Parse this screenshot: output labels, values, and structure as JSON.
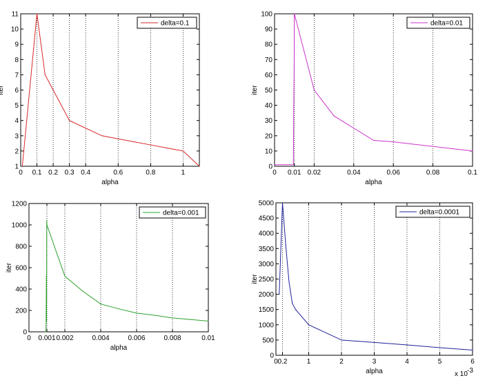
{
  "chart_data": [
    {
      "type": "line",
      "xlabel": "alpha",
      "ylabel": "iter",
      "xlim": [
        0,
        1.1
      ],
      "ylim": [
        1,
        11
      ],
      "xticks": [
        0,
        0.1,
        0.2,
        0.3,
        0.4,
        0.6,
        0.8,
        1
      ],
      "xtick_labels": [
        "0",
        "0.1",
        "0.2",
        "0.3",
        "0.4",
        "0.6",
        "0.8",
        "1"
      ],
      "yticks": [
        1,
        2,
        3,
        4,
        5,
        6,
        7,
        8,
        9,
        10,
        11
      ],
      "ytick_labels": [
        "1",
        "2",
        "3",
        "4",
        "5",
        "6",
        "7",
        "8",
        "9",
        "10",
        "11"
      ],
      "grid_x": true,
      "grid_y": false,
      "legend_position": "top-right",
      "series": [
        {
          "name": "delta=0.1",
          "color": "#d62728",
          "x": [
            0.01,
            0.1,
            0.15,
            0.2,
            0.3,
            0.4,
            0.5,
            0.6,
            0.7,
            0.8,
            0.9,
            1.0,
            1.1
          ],
          "y": [
            1,
            11,
            7,
            6,
            4,
            3.5,
            3,
            2.8,
            2.6,
            2.4,
            2.2,
            2,
            1
          ]
        }
      ]
    },
    {
      "type": "line",
      "xlabel": "alpha",
      "ylabel": "iter",
      "xlim": [
        0,
        0.1
      ],
      "ylim": [
        0,
        100
      ],
      "xticks": [
        0,
        0.01,
        0.02,
        0.04,
        0.06,
        0.08,
        0.1
      ],
      "xtick_labels": [
        "0",
        "0.01",
        "0.02",
        "0.04",
        "0.06",
        "0.08",
        "0.1"
      ],
      "yticks": [
        0,
        10,
        20,
        30,
        40,
        50,
        60,
        70,
        80,
        90,
        100
      ],
      "ytick_labels": [
        "0",
        "10",
        "20",
        "30",
        "40",
        "50",
        "60",
        "70",
        "80",
        "90",
        "100"
      ],
      "grid_x": true,
      "grid_y": false,
      "legend_position": "top-right",
      "series": [
        {
          "name": "delta=0.01",
          "color": "#cc33cc",
          "x": [
            0,
            0.0095,
            0.0097,
            0.0099,
            0.01,
            0.02,
            0.03,
            0.04,
            0.05,
            0.06,
            0.07,
            0.08,
            0.09,
            0.1
          ],
          "y": [
            1,
            1,
            40,
            65,
            100,
            50,
            33,
            25,
            17,
            16,
            14.5,
            13,
            11.5,
            10
          ]
        }
      ]
    },
    {
      "type": "line",
      "xlabel": "alpha",
      "ylabel": "iter",
      "xlim": [
        0,
        0.01
      ],
      "ylim": [
        0,
        1200
      ],
      "xticks": [
        0,
        0.001,
        0.002,
        0.004,
        0.006,
        0.008,
        0.01
      ],
      "xtick_labels": [
        "0",
        "0.001",
        "0.002",
        "0.004",
        "0.006",
        "0.008",
        "0.01"
      ],
      "yticks": [
        0,
        200,
        400,
        600,
        800,
        1000,
        1200
      ],
      "ytick_labels": [
        "0",
        "200",
        "400",
        "600",
        "800",
        "1000",
        "1200"
      ],
      "grid_x": true,
      "grid_y": false,
      "legend_position": "top-right",
      "series": [
        {
          "name": "delta=0.001",
          "color": "#2ca02c",
          "x": [
            0.00095,
            0.00097,
            0.00098,
            0.00099,
            0.001,
            0.002,
            0.003,
            0.004,
            0.005,
            0.006,
            0.007,
            0.008,
            0.009,
            0.01
          ],
          "y": [
            1,
            520,
            100,
            1040,
            1000,
            520,
            380,
            260,
            215,
            175,
            155,
            130,
            115,
            100
          ]
        }
      ]
    },
    {
      "type": "line",
      "xlabel": "alpha",
      "ylabel": "iter",
      "x_exponent_label": "x 10",
      "x_exponent_power": "-3",
      "xlim": [
        0,
        6
      ],
      "ylim": [
        0,
        5000
      ],
      "xticks": [
        0,
        0.2,
        1,
        2,
        3,
        4,
        5,
        6
      ],
      "xtick_labels": [
        "0",
        "0.2",
        "1",
        "2",
        "3",
        "4",
        "5",
        "6"
      ],
      "yticks": [
        0,
        500,
        1000,
        1500,
        2000,
        2500,
        3000,
        3500,
        4000,
        4500,
        5000
      ],
      "ytick_labels": [
        "0",
        "500",
        "1000",
        "1500",
        "2000",
        "2500",
        "3000",
        "3500",
        "4000",
        "4500",
        "5000"
      ],
      "grid_x": true,
      "grid_y": false,
      "legend_position": "top-right",
      "series": [
        {
          "name": "delta=0.0001",
          "color": "#1f1f99",
          "x": [
            0.1,
            0.2,
            0.3,
            0.4,
            0.5,
            0.6,
            1,
            2,
            3,
            4,
            5,
            6
          ],
          "y": [
            2000,
            5000,
            3600,
            2400,
            1700,
            1500,
            1000,
            500,
            420,
            340,
            250,
            170
          ]
        }
      ]
    }
  ]
}
